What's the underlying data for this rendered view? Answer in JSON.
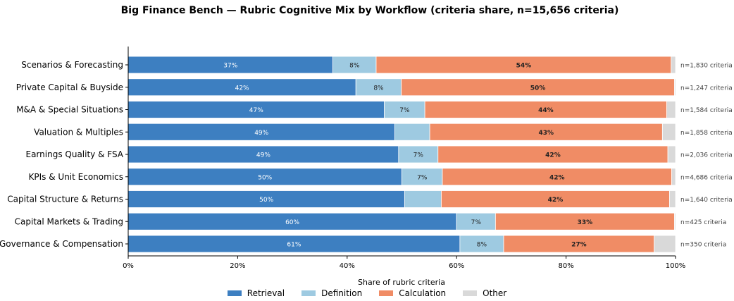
{
  "chart_data": {
    "type": "bar",
    "orientation": "horizontal",
    "stacked": true,
    "title": "Big Finance Bench — Rubric Cognitive Mix by Workflow (criteria share, n=15,656 criteria)",
    "xlabel": "Share of rubric criteria",
    "ylabel": "",
    "xlim": [
      0,
      100
    ],
    "xticks": [
      "0%",
      "20%",
      "40%",
      "60%",
      "80%",
      "100%"
    ],
    "grid": false,
    "legend_position": "bottom-center",
    "categories": [
      "Scenarios & Forecasting",
      "Private Capital & Buyside",
      "M&A & Special Situations",
      "Valuation & Multiples",
      "Earnings Quality & FSA",
      "KPIs & Unit Economics",
      "Capital Structure & Returns",
      "Capital Markets & Trading",
      "Governance & Compensation"
    ],
    "counts": [
      "n=1,830 criteria",
      "n=1,247 criteria",
      "n=1,584 criteria",
      "n=1,858 criteria",
      "n=2,036 criteria",
      "n=4,686 criteria",
      "n=1,640 criteria",
      "n=425 criteria",
      "n=350 criteria"
    ],
    "series": [
      {
        "name": "Retrieval",
        "color": "#3d7fc1",
        "values": [
          37.4,
          41.6,
          46.8,
          48.7,
          49.4,
          50.0,
          50.5,
          60.0,
          60.6
        ],
        "labels": [
          "37%",
          "42%",
          "47%",
          "49%",
          "49%",
          "50%",
          "50%",
          "60%",
          "61%"
        ]
      },
      {
        "name": "Definition",
        "color": "#9ecae1",
        "values": [
          7.9,
          8.3,
          7.4,
          6.4,
          7.2,
          7.4,
          6.7,
          7.1,
          8.0
        ],
        "labels": [
          "8%",
          "8%",
          "7%",
          "",
          "7%",
          "7%",
          "",
          "7%",
          "8%"
        ]
      },
      {
        "name": "Calculation",
        "color": "#f08c65",
        "values": [
          53.9,
          49.9,
          44.2,
          42.5,
          42.0,
          41.9,
          41.7,
          32.7,
          27.5
        ],
        "labels": [
          "54%",
          "50%",
          "44%",
          "43%",
          "42%",
          "42%",
          "42%",
          "33%",
          "27%"
        ]
      },
      {
        "name": "Other",
        "color": "#d9d9d9",
        "values": [
          0.8,
          0.2,
          1.6,
          2.4,
          1.4,
          0.7,
          1.1,
          0.2,
          3.9
        ],
        "labels": [
          "",
          "",
          "",
          "",
          "",
          "",
          "",
          "",
          ""
        ]
      }
    ]
  }
}
